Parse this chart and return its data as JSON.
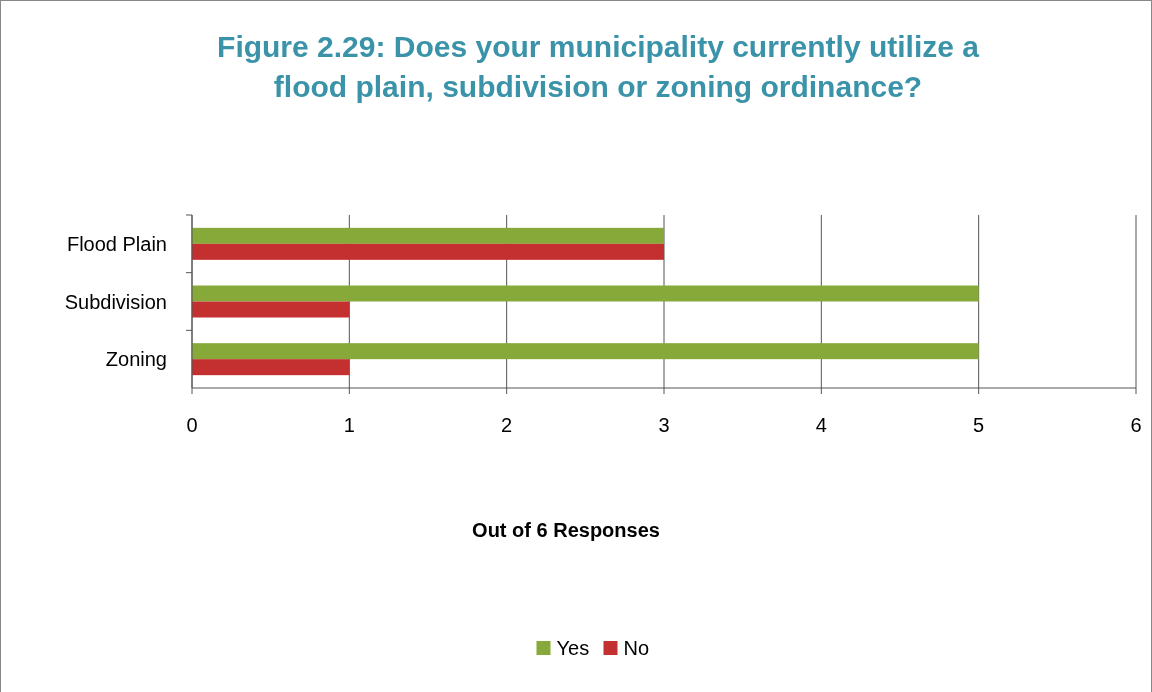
{
  "chart_data": {
    "type": "bar",
    "orientation": "horizontal",
    "title": "Figure 2.29: Does your municipality currently utilize a\nflood plain, subdivision or zoning ordinance?",
    "xlabel": "Out of 6 Responses",
    "categories": [
      "Flood Plain",
      "Subdivision",
      "Zoning"
    ],
    "series": [
      {
        "name": "Yes",
        "color": "#86a93a",
        "values": [
          3,
          5,
          5
        ]
      },
      {
        "name": "No",
        "color": "#c3302f",
        "values": [
          3,
          1,
          1
        ]
      }
    ],
    "xlim": [
      0,
      6
    ],
    "xticks": [
      0,
      1,
      2,
      3,
      4,
      5,
      6
    ],
    "grid": "x",
    "legend": "bottom"
  }
}
